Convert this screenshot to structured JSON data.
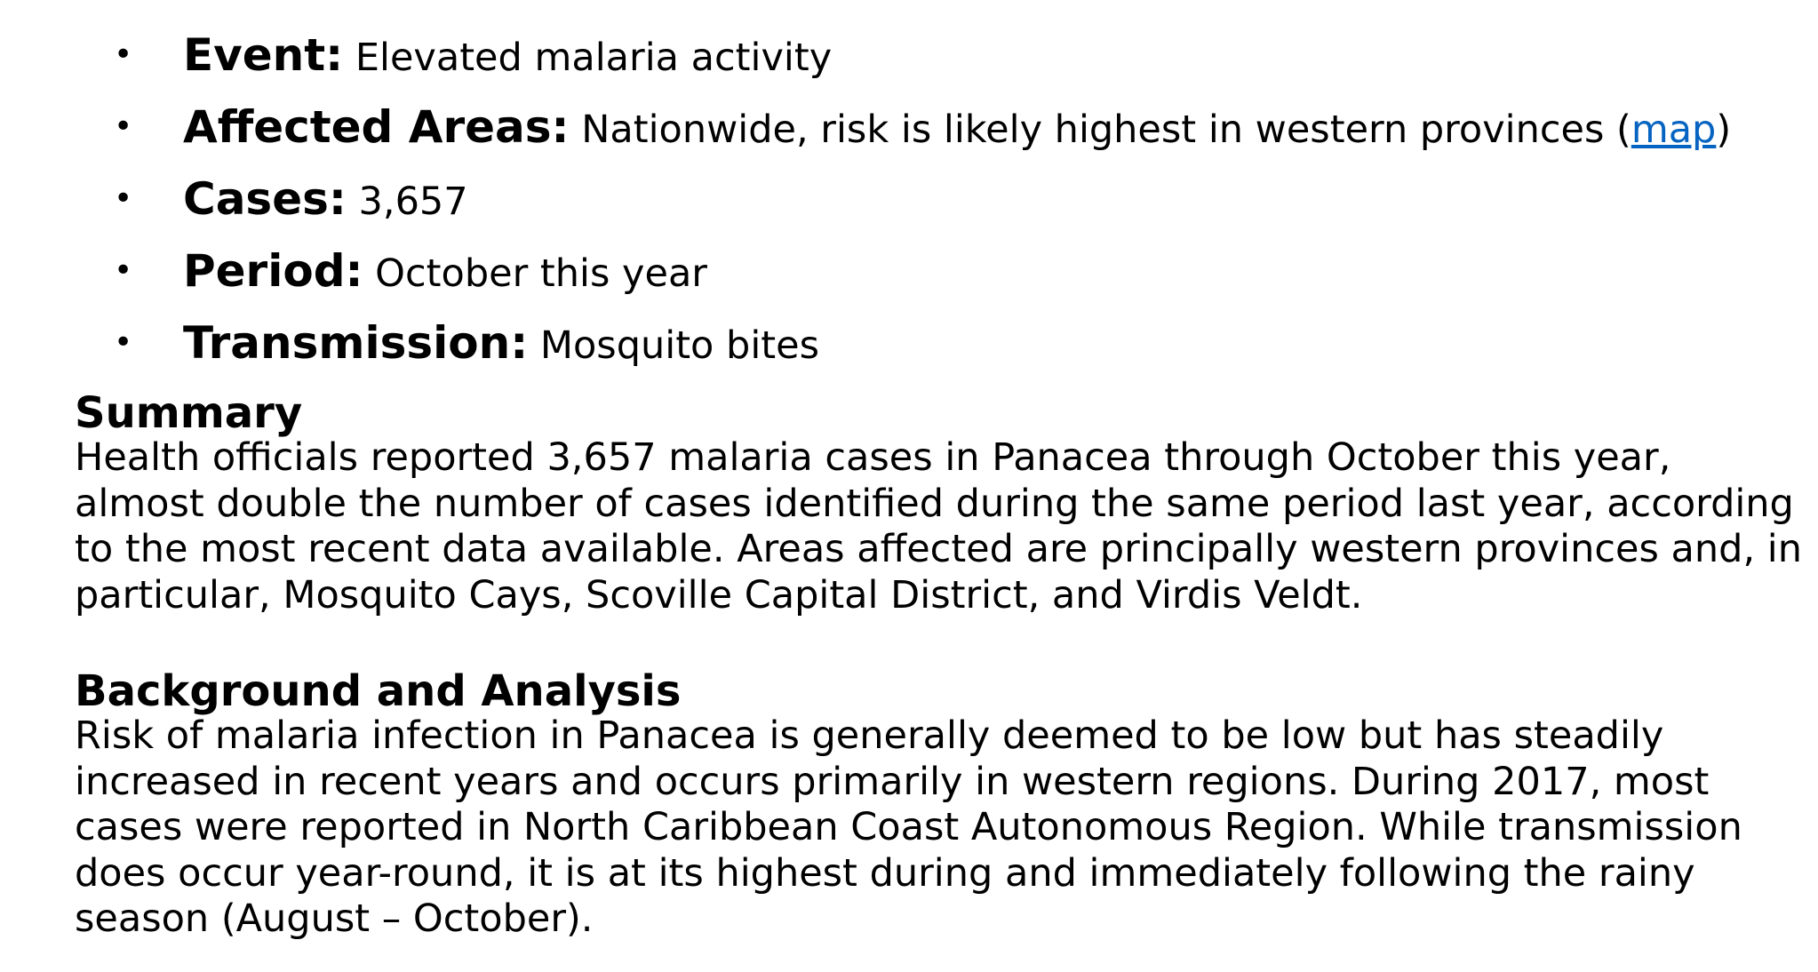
{
  "facts": [
    {
      "label": "Event:",
      "value": "Elevated malaria activity"
    },
    {
      "label": "Affected Areas:",
      "value_before": "Nationwide, risk is likely highest in western provinces (",
      "link": "map",
      "value_after": ")"
    },
    {
      "label": "Cases:",
      "value": "3,657"
    },
    {
      "label": "Period:",
      "value": "October this year"
    },
    {
      "label": "Transmission:",
      "value": "Mosquito bites"
    }
  ],
  "bullet_char": "•",
  "link_color": "#0563c1",
  "summary": {
    "heading": "Summary",
    "body": "Health officials reported 3,657 malaria cases in Panacea through October this year, almost double the number of cases identified during the same period last year, according to the most recent data available. Areas affected are principally western provinces and, in particular, Mosquito Cays, Scoville Capital District, and Virdis Veldt."
  },
  "background": {
    "heading": "Background and Analysis",
    "body": "Risk of malaria infection in Panacea is generally deemed to be low but has steadily increased in recent years and occurs primarily in western regions. During 2017, most cases were reported in North Caribbean Coast Autonomous Region. While transmission does occur year-round, it is at its highest during and immediately following the rainy season (August – October)."
  }
}
